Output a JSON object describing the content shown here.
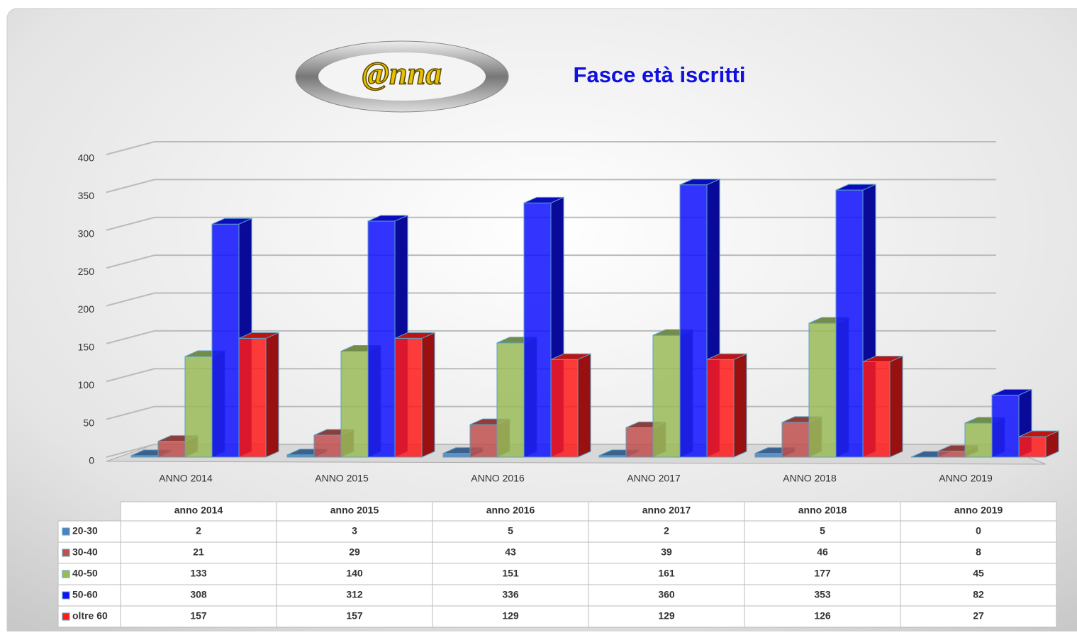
{
  "chart_data": {
    "type": "bar3d",
    "title": "Fasce età iscritti",
    "logo_text": "@nna",
    "categories": [
      "ANNO 2014",
      "ANNO 2015",
      "ANNO 2016",
      "ANNO 2017",
      "ANNO 2018",
      "ANNO 2019"
    ],
    "table_headers": [
      "anno 2014",
      "anno 2015",
      "anno 2016",
      "anno 2017",
      "anno 2018",
      "anno 2019"
    ],
    "series": [
      {
        "name": "20-30",
        "color": "#4f81bd",
        "values": [
          2,
          3,
          5,
          2,
          5,
          0
        ]
      },
      {
        "name": "30-40",
        "color": "#c0504d",
        "values": [
          21,
          29,
          43,
          39,
          46,
          8
        ]
      },
      {
        "name": "40-50",
        "color": "#9bbb59",
        "values": [
          133,
          140,
          151,
          161,
          177,
          45
        ]
      },
      {
        "name": "50-60",
        "color": "#1010ff",
        "values": [
          308,
          312,
          336,
          360,
          353,
          82
        ]
      },
      {
        "name": "oltre 60",
        "color": "#ff1a1a",
        "values": [
          157,
          157,
          129,
          129,
          126,
          27
        ]
      }
    ],
    "ylim": [
      0,
      400
    ],
    "yticks": [
      0,
      50,
      100,
      150,
      200,
      250,
      300,
      350,
      400
    ],
    "grid": true
  }
}
